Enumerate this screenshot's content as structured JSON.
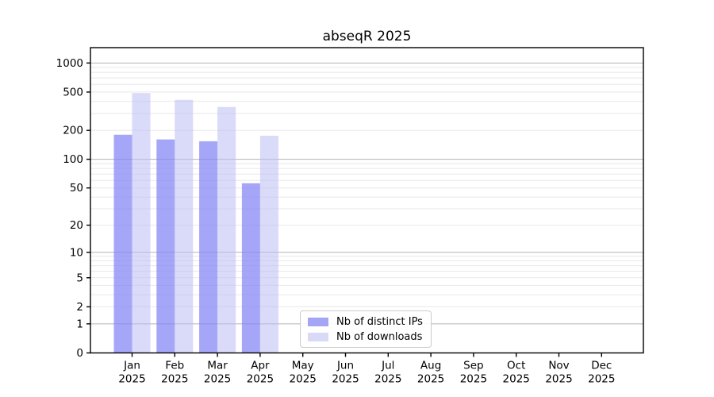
{
  "title": "abseqR 2025",
  "chart_data": {
    "type": "bar",
    "title": "abseqR 2025",
    "categories": [
      "Jan",
      "Feb",
      "Mar",
      "Apr",
      "May",
      "Jun",
      "Jul",
      "Aug",
      "Sep",
      "Oct",
      "Nov",
      "Dec"
    ],
    "category_year_label": "2025",
    "series": [
      {
        "name": "Nb of distinct IPs",
        "values": [
          180,
          161,
          154,
          56,
          null,
          null,
          null,
          null,
          null,
          null,
          null,
          null
        ]
      },
      {
        "name": "Nb of downloads",
        "values": [
          488,
          415,
          350,
          176,
          null,
          null,
          null,
          null,
          null,
          null,
          null,
          null
        ]
      }
    ],
    "y_ticks": [
      0,
      1,
      2,
      5,
      10,
      20,
      50,
      100,
      200,
      500,
      1000
    ],
    "y_scale": "log1p",
    "ylim": [
      0,
      1450
    ],
    "xlabel": "",
    "ylabel": "",
    "grid": "horizontal major+minor",
    "legend_position": "lower center inside"
  },
  "legend": {
    "items": [
      {
        "label": "Nb of distinct IPs"
      },
      {
        "label": "Nb of downloads"
      }
    ]
  },
  "colors": {
    "bar_distinct_ips": "#a5a5f6",
    "bar_downloads": "#d9d9f8",
    "bar_distinct_ips_rgba": "rgba(131,131,245,0.72)",
    "bar_downloads_rgba": "rgba(188,188,244,0.55)",
    "grid_major": "#b3b3b3",
    "grid_minor": "#e8e8e8",
    "axis": "#000000",
    "legend_border": "#cccccc"
  }
}
